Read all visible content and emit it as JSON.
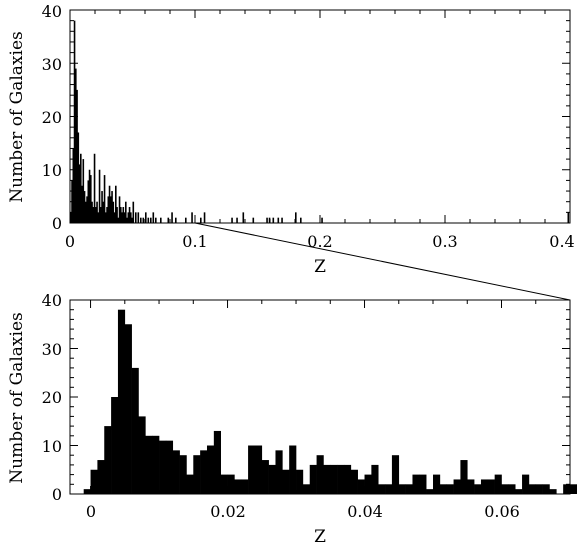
{
  "chart_data": [
    {
      "type": "bar",
      "panel": "top",
      "xlabel": "Z",
      "ylabel": "Number of Galaxies",
      "xlim": [
        0,
        0.4
      ],
      "ylim": [
        0,
        40
      ],
      "xticks": [
        "0",
        "0.1",
        "0.2",
        "0.3",
        "0.4"
      ],
      "yticks": [
        "0",
        "10",
        "20",
        "30",
        "40"
      ],
      "grid": false,
      "bar_color": "#000000",
      "bins": [
        {
          "x": 0.0,
          "v": 2
        },
        {
          "x": 0.001,
          "v": 8
        },
        {
          "x": 0.002,
          "v": 14
        },
        {
          "x": 0.003,
          "v": 38
        },
        {
          "x": 0.004,
          "v": 29
        },
        {
          "x": 0.005,
          "v": 25
        },
        {
          "x": 0.006,
          "v": 17
        },
        {
          "x": 0.007,
          "v": 11
        },
        {
          "x": 0.008,
          "v": 13
        },
        {
          "x": 0.009,
          "v": 7
        },
        {
          "x": 0.01,
          "v": 12
        },
        {
          "x": 0.011,
          "v": 6
        },
        {
          "x": 0.012,
          "v": 4
        },
        {
          "x": 0.013,
          "v": 5
        },
        {
          "x": 0.014,
          "v": 8
        },
        {
          "x": 0.015,
          "v": 10
        },
        {
          "x": 0.016,
          "v": 9
        },
        {
          "x": 0.017,
          "v": 4
        },
        {
          "x": 0.018,
          "v": 3
        },
        {
          "x": 0.019,
          "v": 13
        },
        {
          "x": 0.02,
          "v": 3
        },
        {
          "x": 0.021,
          "v": 4
        },
        {
          "x": 0.022,
          "v": 2
        },
        {
          "x": 0.023,
          "v": 10
        },
        {
          "x": 0.024,
          "v": 3
        },
        {
          "x": 0.025,
          "v": 6
        },
        {
          "x": 0.026,
          "v": 4
        },
        {
          "x": 0.027,
          "v": 9
        },
        {
          "x": 0.028,
          "v": 2
        },
        {
          "x": 0.029,
          "v": 3
        },
        {
          "x": 0.03,
          "v": 5
        },
        {
          "x": 0.031,
          "v": 7
        },
        {
          "x": 0.032,
          "v": 5
        },
        {
          "x": 0.033,
          "v": 6
        },
        {
          "x": 0.034,
          "v": 4
        },
        {
          "x": 0.035,
          "v": 2
        },
        {
          "x": 0.036,
          "v": 7
        },
        {
          "x": 0.037,
          "v": 3
        },
        {
          "x": 0.038,
          "v": 1
        },
        {
          "x": 0.039,
          "v": 5
        },
        {
          "x": 0.04,
          "v": 3
        },
        {
          "x": 0.041,
          "v": 2
        },
        {
          "x": 0.042,
          "v": 3
        },
        {
          "x": 0.043,
          "v": 2
        },
        {
          "x": 0.044,
          "v": 4
        },
        {
          "x": 0.045,
          "v": 1
        },
        {
          "x": 0.046,
          "v": 2
        },
        {
          "x": 0.047,
          "v": 3
        },
        {
          "x": 0.048,
          "v": 2
        },
        {
          "x": 0.049,
          "v": 1
        },
        {
          "x": 0.05,
          "v": 4
        },
        {
          "x": 0.052,
          "v": 2
        },
        {
          "x": 0.054,
          "v": 2
        },
        {
          "x": 0.056,
          "v": 1
        },
        {
          "x": 0.058,
          "v": 1
        },
        {
          "x": 0.06,
          "v": 2
        },
        {
          "x": 0.062,
          "v": 1
        },
        {
          "x": 0.064,
          "v": 1
        },
        {
          "x": 0.066,
          "v": 2
        },
        {
          "x": 0.068,
          "v": 1
        },
        {
          "x": 0.072,
          "v": 1
        },
        {
          "x": 0.078,
          "v": 1
        },
        {
          "x": 0.081,
          "v": 2
        },
        {
          "x": 0.084,
          "v": 1
        },
        {
          "x": 0.092,
          "v": 1
        },
        {
          "x": 0.097,
          "v": 2
        },
        {
          "x": 0.104,
          "v": 1
        },
        {
          "x": 0.107,
          "v": 2
        },
        {
          "x": 0.129,
          "v": 1
        },
        {
          "x": 0.133,
          "v": 1
        },
        {
          "x": 0.138,
          "v": 2
        },
        {
          "x": 0.146,
          "v": 1
        },
        {
          "x": 0.157,
          "v": 1
        },
        {
          "x": 0.159,
          "v": 1
        },
        {
          "x": 0.162,
          "v": 1
        },
        {
          "x": 0.166,
          "v": 1
        },
        {
          "x": 0.169,
          "v": 1
        },
        {
          "x": 0.18,
          "v": 2
        },
        {
          "x": 0.184,
          "v": 1
        },
        {
          "x": 0.201,
          "v": 1
        },
        {
          "x": 0.398,
          "v": 2
        }
      ]
    },
    {
      "type": "bar",
      "panel": "bottom",
      "xlabel": "Z",
      "ylabel": "Number of Galaxies",
      "xlim": [
        -0.003,
        0.07
      ],
      "ylim": [
        0,
        40
      ],
      "xticks": [
        "0",
        "0.02",
        "0.04",
        "0.06"
      ],
      "yticks": [
        "0",
        "10",
        "20",
        "30",
        "40"
      ],
      "grid": false,
      "bar_color": "#000000",
      "bin_width": 0.001,
      "x_start": -0.001,
      "values": [
        1,
        5,
        7,
        14,
        20,
        38,
        35,
        26,
        16,
        12,
        12,
        11,
        11,
        9,
        8,
        4,
        8,
        9,
        10,
        13,
        4,
        4,
        3,
        3,
        10,
        10,
        7,
        6,
        9,
        5,
        10,
        5,
        2,
        6,
        8,
        6,
        6,
        6,
        6,
        5,
        3,
        4,
        6,
        2,
        2,
        8,
        2,
        2,
        4,
        4,
        1,
        4,
        2,
        2,
        3,
        7,
        3,
        2,
        3,
        3,
        4,
        2,
        2,
        1,
        4,
        2,
        2,
        2,
        1,
        0,
        2,
        2,
        2,
        3,
        0,
        0,
        1
      ]
    }
  ]
}
